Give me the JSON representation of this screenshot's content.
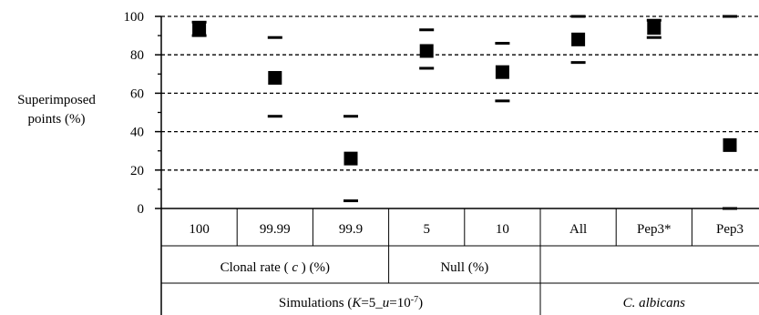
{
  "chart_data": {
    "type": "scatter",
    "ylabel": "Superimposed points (%)",
    "ylim": [
      0,
      100
    ],
    "yticks": [
      "0",
      "20",
      "40",
      "60",
      "80",
      "100"
    ],
    "grid": "horizontal dashed",
    "categories": [
      "100",
      "99.99",
      "99.9",
      "5",
      "10",
      "All",
      "Pep3*",
      "Pep3"
    ],
    "points": [
      {
        "category": "100",
        "mean": 93,
        "upper": 97,
        "lower": 90
      },
      {
        "category": "99.99",
        "mean": 68,
        "upper": 89,
        "lower": 48
      },
      {
        "category": "99.9",
        "mean": 26,
        "upper": 48,
        "lower": 4
      },
      {
        "category": "5",
        "mean": 82,
        "upper": 93,
        "lower": 73
      },
      {
        "category": "10",
        "mean": 71,
        "upper": 86,
        "lower": 56
      },
      {
        "category": "All",
        "mean": 88,
        "upper": 100,
        "lower": 76
      },
      {
        "category": "Pep3*",
        "mean": 94,
        "upper": 98,
        "lower": 89
      },
      {
        "category": "Pep3",
        "mean": 33,
        "upper": 100,
        "lower": 0
      }
    ],
    "subgroups": [
      {
        "label": "Clonal rate ( c ) (%)",
        "label_parts": [
          "Clonal rate ( ",
          "c",
          " ) (%)"
        ],
        "span": [
          0,
          2
        ]
      },
      {
        "label": "Null (%)",
        "span": [
          3,
          4
        ]
      }
    ],
    "groups": [
      {
        "label": "Simulations (K=5_u=10-7)",
        "label_parts": [
          "Simulations (",
          "K",
          "=5_",
          "u",
          "=10",
          "-7",
          ")"
        ],
        "span": [
          0,
          4
        ]
      },
      {
        "label": "C. albicans",
        "span": [
          5,
          7
        ]
      }
    ]
  }
}
